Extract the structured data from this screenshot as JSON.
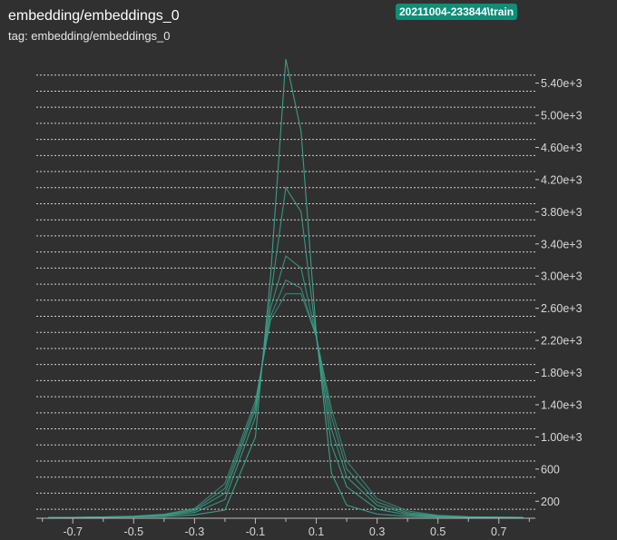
{
  "chart": {
    "title": "embedding/embeddings_0",
    "tag": "tag: embedding/embeddings_0",
    "run_badge": "20211004-233844\\train",
    "colors": {
      "background": "#303030",
      "badge": "#0d8f78",
      "line": "#3aa58c",
      "grid": "#d0d0d0",
      "text": "#ffffff"
    }
  },
  "chart_data": {
    "type": "line",
    "chart_kind": "histogram-offset (ridge) plot",
    "title": "embedding/embeddings_0",
    "subtitle": "tag: embedding/embeddings_0",
    "xlabel": "",
    "ylabel": "",
    "xlim": [
      -0.82,
      0.82
    ],
    "ylim": [
      0,
      5700
    ],
    "x_ticks": [
      -0.7,
      -0.5,
      -0.3,
      -0.1,
      0.1,
      0.3,
      0.5,
      0.7
    ],
    "x_tick_labels": [
      "-0.7",
      "-0.5",
      "-0.3",
      "-0.1",
      "0.1",
      "0.3",
      "0.5",
      "0.7"
    ],
    "y_ticks": [
      200,
      600,
      1000,
      1400,
      1800,
      2200,
      2600,
      3000,
      3400,
      3800,
      4200,
      4600,
      5000,
      5400
    ],
    "y_tick_labels": [
      "200",
      "600",
      "1.00e+3",
      "1.40e+3",
      "1.80e+3",
      "2.20e+3",
      "2.60e+3",
      "3.00e+3",
      "3.40e+3",
      "3.80e+3",
      "4.20e+3",
      "4.60e+3",
      "5.00e+3",
      "5.40e+3"
    ],
    "grid": true,
    "grid_style": "dotted",
    "y_axis_position": "right",
    "legend": "none",
    "x": [
      -0.78,
      -0.7,
      -0.6,
      -0.5,
      -0.4,
      -0.3,
      -0.2,
      -0.1,
      -0.05,
      0.0,
      0.05,
      0.1,
      0.15,
      0.2,
      0.3,
      0.4,
      0.5,
      0.6,
      0.7,
      0.78
    ],
    "series": [
      {
        "values": [
          0,
          0,
          5,
          15,
          40,
          110,
          420,
          1450,
          2450,
          2780,
          2780,
          2250,
          1350,
          700,
          230,
          80,
          25,
          8,
          2,
          0
        ]
      },
      {
        "values": [
          0,
          0,
          4,
          12,
          35,
          95,
          360,
          1400,
          2500,
          2950,
          2850,
          2250,
          1250,
          600,
          190,
          60,
          20,
          6,
          2,
          0
        ]
      },
      {
        "values": [
          0,
          0,
          3,
          10,
          28,
          80,
          300,
          1350,
          2600,
          3250,
          3100,
          2250,
          1100,
          500,
          150,
          45,
          15,
          4,
          1,
          0
        ]
      },
      {
        "values": [
          0,
          0,
          2,
          8,
          22,
          60,
          220,
          1250,
          2750,
          4100,
          3800,
          2250,
          900,
          380,
          100,
          30,
          10,
          3,
          1,
          0
        ]
      },
      {
        "values": [
          0,
          0,
          1,
          4,
          10,
          30,
          90,
          1000,
          3000,
          5700,
          4800,
          2300,
          550,
          150,
          40,
          12,
          4,
          1,
          0,
          0
        ]
      }
    ]
  }
}
